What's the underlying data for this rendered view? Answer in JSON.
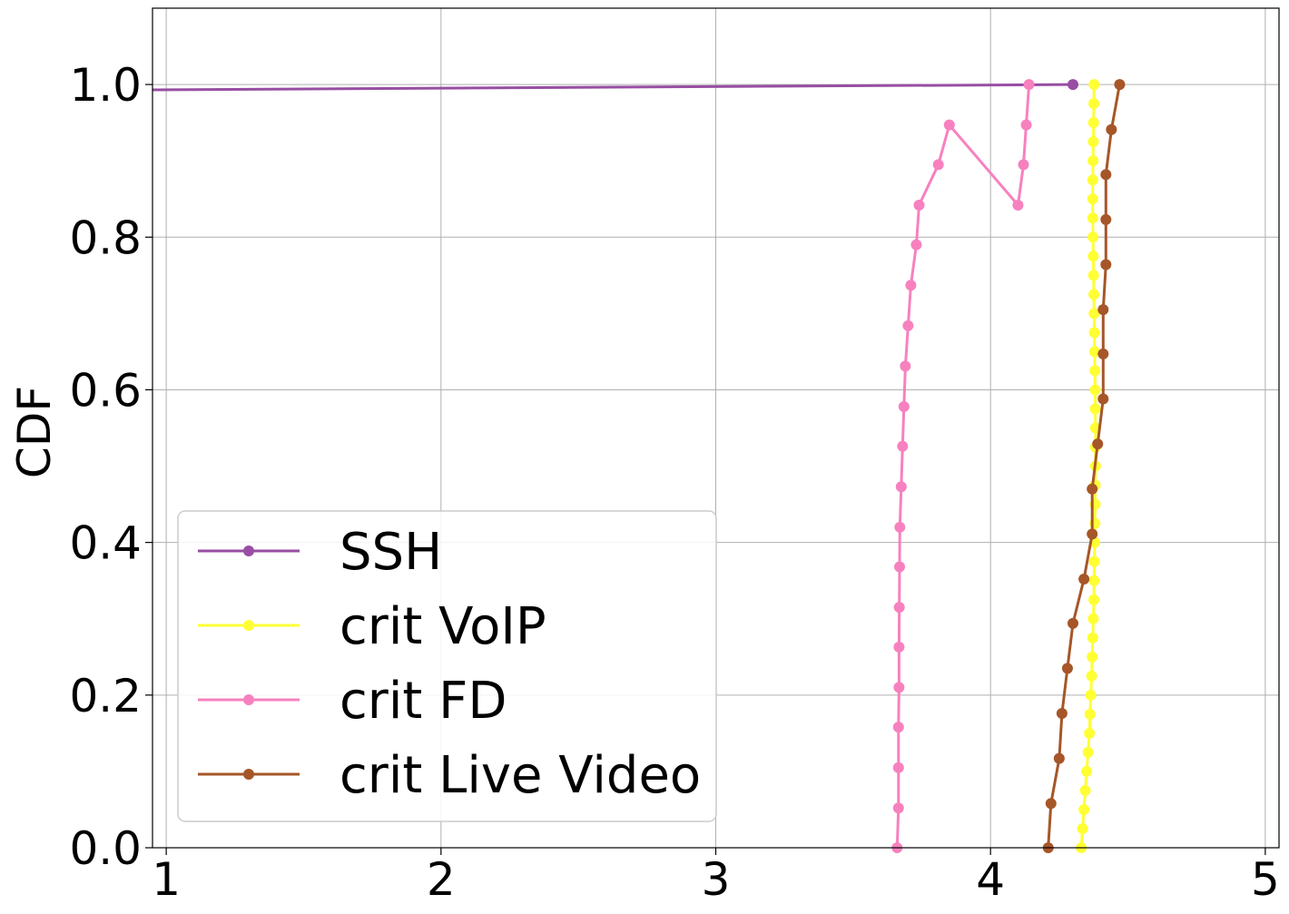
{
  "chart_data": {
    "type": "line",
    "title": "",
    "xlabel": "",
    "ylabel": "CDF",
    "xlim": [
      0.95,
      5.05
    ],
    "ylim": [
      0.0,
      1.1
    ],
    "xticks": [
      1,
      2,
      3,
      4,
      5
    ],
    "xtick_labels": [
      "1",
      "2",
      "3",
      "4",
      "5"
    ],
    "yticks": [
      0.0,
      0.2,
      0.4,
      0.6,
      0.8,
      1.0
    ],
    "ytick_labels": [
      "0.0",
      "0.2",
      "0.4",
      "0.6",
      "0.8",
      "1.0"
    ],
    "grid": true,
    "legend_position": "lower-left",
    "series": [
      {
        "name": "SSH",
        "color": "#984ea3",
        "x": [
          0.95,
          4.3
        ],
        "y": [
          0.993,
          1.0
        ],
        "markers_x": [
          4.3
        ],
        "markers_y": [
          1.0
        ]
      },
      {
        "name": "crit VoIP",
        "color": "#ffff33",
        "x": [
          4.33,
          4.335,
          4.34,
          4.345,
          4.35,
          4.355,
          4.36,
          4.362,
          4.365,
          4.368,
          4.37,
          4.372,
          4.374,
          4.376,
          4.377,
          4.378,
          4.379,
          4.38,
          4.381,
          4.381,
          4.382,
          4.382,
          4.382,
          4.381,
          4.381,
          4.38,
          4.379,
          4.378,
          4.377,
          4.376,
          4.375,
          4.374,
          4.373,
          4.372,
          4.372,
          4.372,
          4.373,
          4.374,
          4.375,
          4.376,
          4.377
        ],
        "y": [
          0.0,
          0.025,
          0.05,
          0.075,
          0.1,
          0.125,
          0.15,
          0.175,
          0.2,
          0.225,
          0.25,
          0.275,
          0.3,
          0.325,
          0.35,
          0.375,
          0.4,
          0.425,
          0.45,
          0.475,
          0.5,
          0.525,
          0.55,
          0.575,
          0.6,
          0.625,
          0.65,
          0.675,
          0.7,
          0.725,
          0.75,
          0.775,
          0.8,
          0.825,
          0.85,
          0.875,
          0.9,
          0.925,
          0.95,
          0.975,
          1.0
        ]
      },
      {
        "name": "crit FD",
        "color": "#f781bf",
        "x": [
          3.66,
          3.665,
          3.665,
          3.665,
          3.667,
          3.667,
          3.668,
          3.669,
          3.67,
          3.675,
          3.68,
          3.685,
          3.69,
          3.7,
          3.71,
          3.73,
          3.74,
          3.81,
          3.85,
          4.1,
          4.12,
          4.13,
          4.14
        ],
        "y": [
          0.0,
          0.052,
          0.105,
          0.158,
          0.21,
          0.263,
          0.315,
          0.368,
          0.42,
          0.473,
          0.526,
          0.578,
          0.631,
          0.684,
          0.737,
          0.79,
          0.842,
          0.895,
          0.947,
          0.842,
          0.895,
          0.947,
          1.0
        ],
        "plot_x": [
          3.66,
          3.665,
          3.665,
          3.665,
          3.667,
          3.667,
          3.668,
          3.669,
          3.67,
          3.675,
          3.68,
          3.685,
          3.69,
          3.7,
          3.71,
          3.73,
          3.74,
          3.81,
          3.85,
          4.1,
          4.12,
          4.13,
          4.14
        ],
        "plot_y": [
          0.0,
          0.052,
          0.105,
          0.158,
          0.21,
          0.263,
          0.315,
          0.368,
          0.42,
          0.473,
          0.526,
          0.578,
          0.631,
          0.684,
          0.737,
          0.79,
          0.842,
          0.895,
          0.947,
          0.842,
          0.895,
          0.947,
          1.0
        ]
      },
      {
        "name": "crit Live Video",
        "color": "#a65628",
        "x": [
          4.21,
          4.22,
          4.25,
          4.26,
          4.28,
          4.3,
          4.34,
          4.37,
          4.37,
          4.39,
          4.41,
          4.41,
          4.41,
          4.42,
          4.42,
          4.42,
          4.44,
          4.47
        ],
        "y": [
          0.0,
          0.058,
          0.117,
          0.176,
          0.235,
          0.294,
          0.352,
          0.411,
          0.47,
          0.529,
          0.588,
          0.647,
          0.705,
          0.764,
          0.823,
          0.882,
          0.941,
          1.0
        ]
      }
    ]
  }
}
